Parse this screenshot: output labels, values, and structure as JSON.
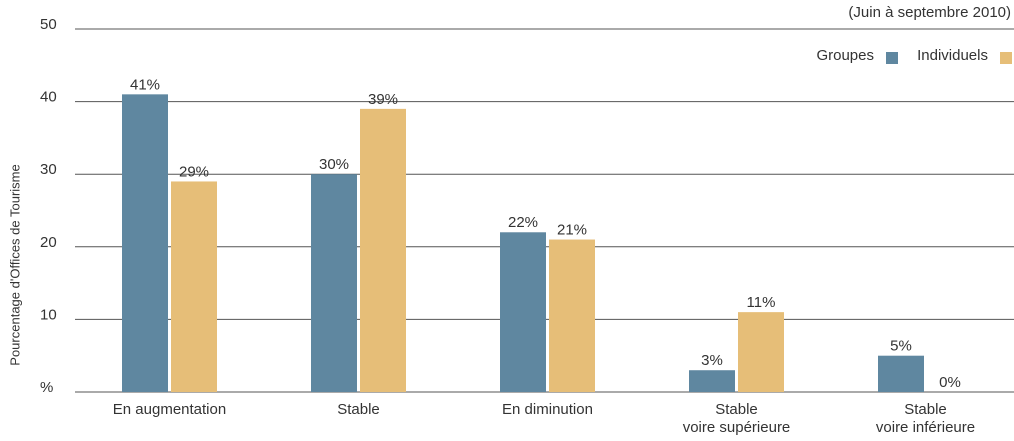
{
  "chart_data": {
    "type": "bar",
    "subtitle": "(Juin à septembre 2010)",
    "y_label": "Pourcentage d'Offices de Tourisme",
    "categories": [
      "En augmentation",
      "Stable",
      "En diminution",
      "Stable\nvoire supérieure",
      "Stable\nvoire inférieure"
    ],
    "series": [
      {
        "name": "Groupes",
        "color": "#5f87a0",
        "values": [
          41,
          30,
          22,
          3,
          5
        ],
        "value_labels": [
          "41%",
          "30%",
          "22%",
          "3%",
          "5%"
        ]
      },
      {
        "name": "Individuels",
        "color": "#e6be78",
        "values": [
          29,
          39,
          21,
          11,
          0
        ],
        "value_labels": [
          "29%",
          "39%",
          "21%",
          "11%",
          "0%"
        ]
      }
    ],
    "ylim": [
      0,
      50
    ],
    "yticks": [
      {
        "value": 0,
        "label": "%"
      },
      10,
      20,
      30,
      40,
      50
    ],
    "grid": true,
    "legend": "top-right"
  }
}
